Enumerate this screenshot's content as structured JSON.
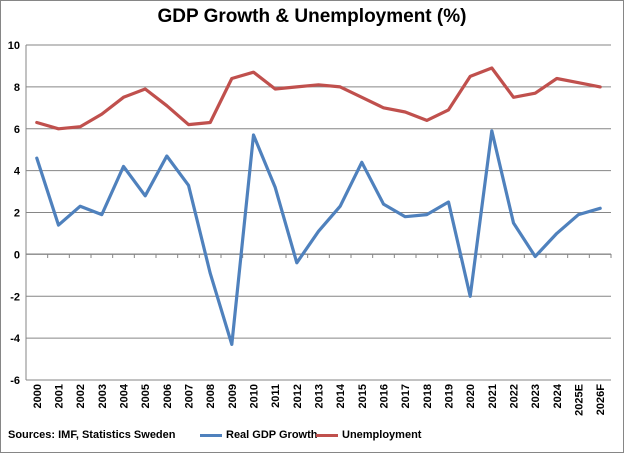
{
  "chart_data": {
    "type": "line",
    "title": "GDP Growth & Unemployment (%)",
    "source": "Sources: IMF, Statistics Sweden",
    "categories": [
      "2000",
      "2001",
      "2002",
      "2003",
      "2004",
      "2005",
      "2006",
      "2007",
      "2008",
      "2009",
      "2010",
      "2011",
      "2012",
      "2013",
      "2014",
      "2015",
      "2016",
      "2017",
      "2018",
      "2019",
      "2020",
      "2021",
      "2022",
      "2023",
      "2024",
      "2025E",
      "2026F"
    ],
    "series": [
      {
        "name": "Real GDP Growth",
        "color": "#4f81bd",
        "values": [
          4.6,
          1.4,
          2.3,
          1.9,
          4.2,
          2.8,
          4.7,
          3.3,
          -0.9,
          -4.3,
          5.7,
          3.2,
          -0.4,
          1.1,
          2.3,
          4.4,
          2.4,
          1.8,
          1.9,
          2.5,
          -2.0,
          5.9,
          1.5,
          -0.1,
          1.0,
          1.9,
          2.2
        ]
      },
      {
        "name": "Unemployment",
        "color": "#c0504d",
        "values": [
          6.3,
          6.0,
          6.1,
          6.7,
          7.5,
          7.9,
          7.1,
          6.2,
          6.3,
          8.4,
          8.7,
          7.9,
          8.0,
          8.1,
          8.0,
          7.5,
          7.0,
          6.8,
          6.4,
          6.9,
          8.5,
          8.9,
          7.5,
          7.7,
          8.4,
          8.2,
          8.0
        ]
      }
    ],
    "ylim": [
      -6,
      10
    ],
    "yticks": [
      -6,
      -4,
      -2,
      0,
      2,
      4,
      6,
      8,
      10
    ],
    "grid": true,
    "legend_position": "bottom"
  }
}
